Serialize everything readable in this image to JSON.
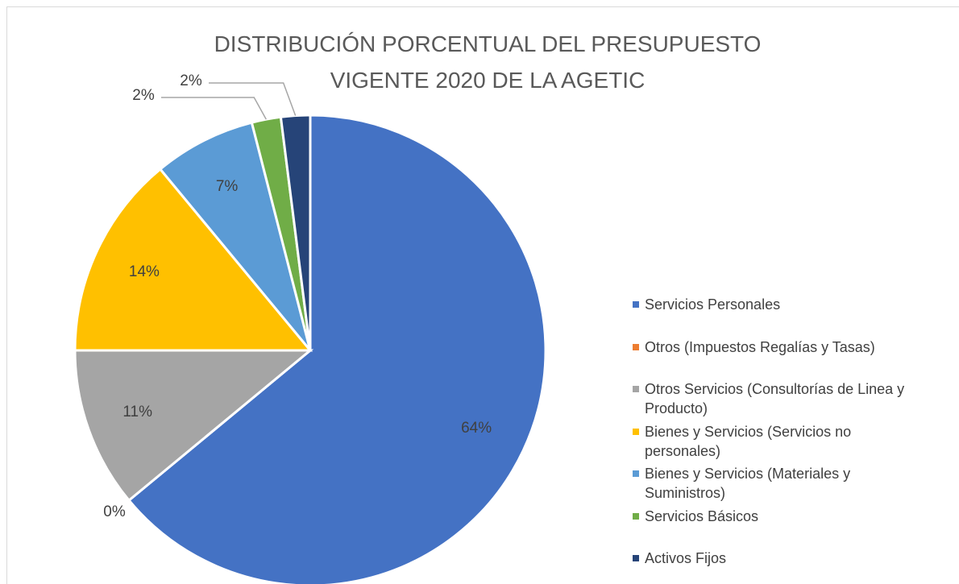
{
  "chart_data": {
    "type": "pie",
    "title": "DISTRIBUCIÓN PORCENTUAL DEL PRESUPUESTO VIGENTE 2020 DE LA AGETIC",
    "categories": [
      "Servicios Personales",
      "Otros (Impuestos Regalías y Tasas)",
      "Otros Servicios (Consultorías de Linea y Producto)",
      "Bienes y Servicios (Servicios no personales)",
      "Bienes y Servicios (Materiales y Suministros)",
      "Servicios Básicos",
      "Activos Fijos"
    ],
    "values": [
      64,
      0,
      11,
      14,
      7,
      2,
      2
    ],
    "value_labels": [
      "64%",
      "0%",
      "11%",
      "14%",
      "7%",
      "2%",
      "2%"
    ],
    "colors": [
      "#4472c4",
      "#ed7d31",
      "#a5a5a5",
      "#ffc000",
      "#5b9bd5",
      "#70ad47",
      "#264478"
    ],
    "legend": "right"
  }
}
